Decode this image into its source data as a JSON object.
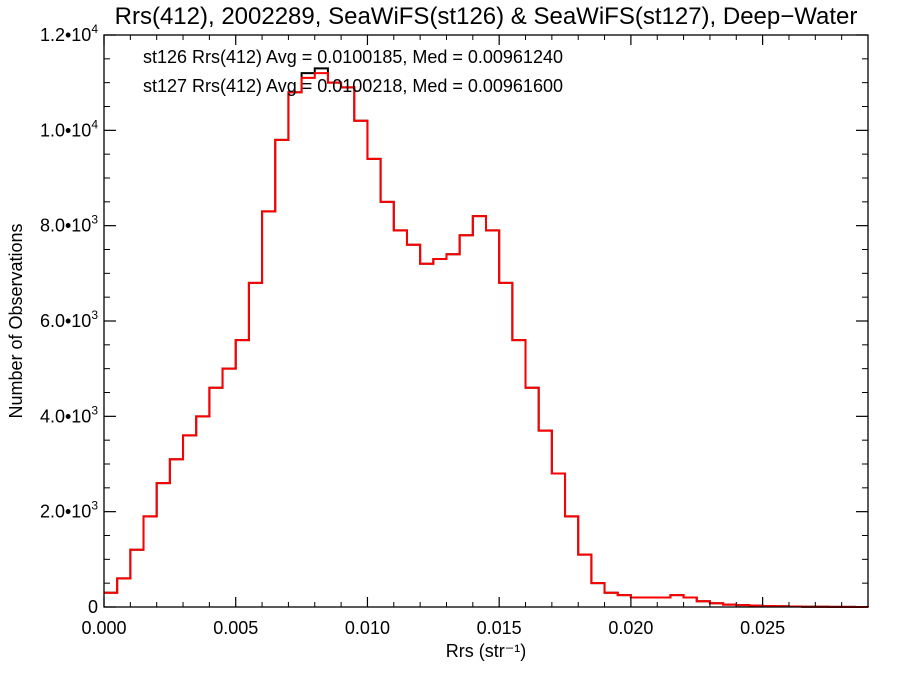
{
  "chart_data": {
    "type": "line",
    "title": "Rrs(412), 2002289, SeaWiFS(st126) & SeaWiFS(st127), Deep−Water",
    "xlabel": "Rrs (str⁻¹)",
    "ylabel": "Number of Observations",
    "xlim": [
      0.0,
      0.029
    ],
    "ylim": [
      0,
      12000
    ],
    "x_ticks": [
      0.0,
      0.005,
      0.01,
      0.015,
      0.02,
      0.025
    ],
    "x_tick_labels": [
      "0.000",
      "0.005",
      "0.010",
      "0.015",
      "0.020",
      "0.025"
    ],
    "y_ticks": [
      0,
      2000,
      4000,
      6000,
      8000,
      10000,
      12000
    ],
    "y_tick_labels": [
      {
        "mantissa": "0",
        "exp": ""
      },
      {
        "mantissa": "2.0•10",
        "exp": "3"
      },
      {
        "mantissa": "4.0•10",
        "exp": "3"
      },
      {
        "mantissa": "6.0•10",
        "exp": "3"
      },
      {
        "mantissa": "8.0•10",
        "exp": "3"
      },
      {
        "mantissa": "1.0•10",
        "exp": "4"
      },
      {
        "mantissa": "1.2•10",
        "exp": "4"
      }
    ],
    "grid": false,
    "series_style": "histogram-step",
    "annotations": [
      {
        "text": "st126 Rrs(412) Avg = 0.0100185, Med = 0.00961240",
        "color": "#000000"
      },
      {
        "text": "st127 Rrs(412) Avg = 0.0100218, Med = 0.00961600",
        "color": "#ff0000"
      }
    ],
    "series": [
      {
        "color": "#000000",
        "x": [
          0.0,
          0.0005,
          0.001,
          0.0015,
          0.002,
          0.0025,
          0.003,
          0.0035,
          0.004,
          0.0045,
          0.005,
          0.0055,
          0.006,
          0.0065,
          0.007,
          0.0075,
          0.008,
          0.0085,
          0.009,
          0.0095,
          0.01,
          0.0105,
          0.011,
          0.0115,
          0.012,
          0.0125,
          0.013,
          0.0135,
          0.014,
          0.0145,
          0.015,
          0.0155,
          0.016,
          0.0165,
          0.017,
          0.0175,
          0.018,
          0.0185,
          0.019,
          0.0195,
          0.02,
          0.0205,
          0.021,
          0.0215,
          0.022,
          0.0225,
          0.023,
          0.0235,
          0.024,
          0.0245,
          0.025,
          0.0255,
          0.026,
          0.0265,
          0.027,
          0.0275,
          0.028,
          0.0285,
          0.029
        ],
        "y": [
          300,
          600,
          1200,
          1900,
          2600,
          3100,
          3600,
          4000,
          4600,
          5000,
          5600,
          6800,
          8300,
          9800,
          10800,
          11200,
          11300,
          11000,
          10900,
          10200,
          9400,
          8500,
          7900,
          7600,
          7200,
          7300,
          7400,
          7800,
          8200,
          7900,
          6800,
          5600,
          4600,
          3700,
          2800,
          1900,
          1100,
          500,
          300,
          250,
          200,
          200,
          200,
          250,
          200,
          120,
          80,
          50,
          40,
          30,
          20,
          15,
          10,
          5,
          5,
          3,
          2,
          1,
          0
        ]
      },
      {
        "color": "#ff0000",
        "x": [
          0.0,
          0.0005,
          0.001,
          0.0015,
          0.002,
          0.0025,
          0.003,
          0.0035,
          0.004,
          0.0045,
          0.005,
          0.0055,
          0.006,
          0.0065,
          0.007,
          0.0075,
          0.008,
          0.0085,
          0.009,
          0.0095,
          0.01,
          0.0105,
          0.011,
          0.0115,
          0.012,
          0.0125,
          0.013,
          0.0135,
          0.014,
          0.0145,
          0.015,
          0.0155,
          0.016,
          0.0165,
          0.017,
          0.0175,
          0.018,
          0.0185,
          0.019,
          0.0195,
          0.02,
          0.0205,
          0.021,
          0.0215,
          0.022,
          0.0225,
          0.023,
          0.0235,
          0.024,
          0.0245,
          0.025,
          0.0255,
          0.026,
          0.0265,
          0.027,
          0.0275,
          0.028,
          0.0285,
          0.029
        ],
        "y": [
          300,
          600,
          1200,
          1900,
          2600,
          3100,
          3600,
          4000,
          4600,
          5000,
          5600,
          6800,
          8300,
          9800,
          10800,
          11100,
          11200,
          11000,
          10900,
          10200,
          9400,
          8500,
          7900,
          7600,
          7200,
          7300,
          7400,
          7800,
          8200,
          7900,
          6800,
          5600,
          4600,
          3700,
          2800,
          1900,
          1100,
          500,
          300,
          250,
          200,
          200,
          200,
          250,
          200,
          120,
          80,
          50,
          40,
          30,
          20,
          15,
          10,
          5,
          5,
          3,
          2,
          1,
          0
        ]
      }
    ]
  }
}
